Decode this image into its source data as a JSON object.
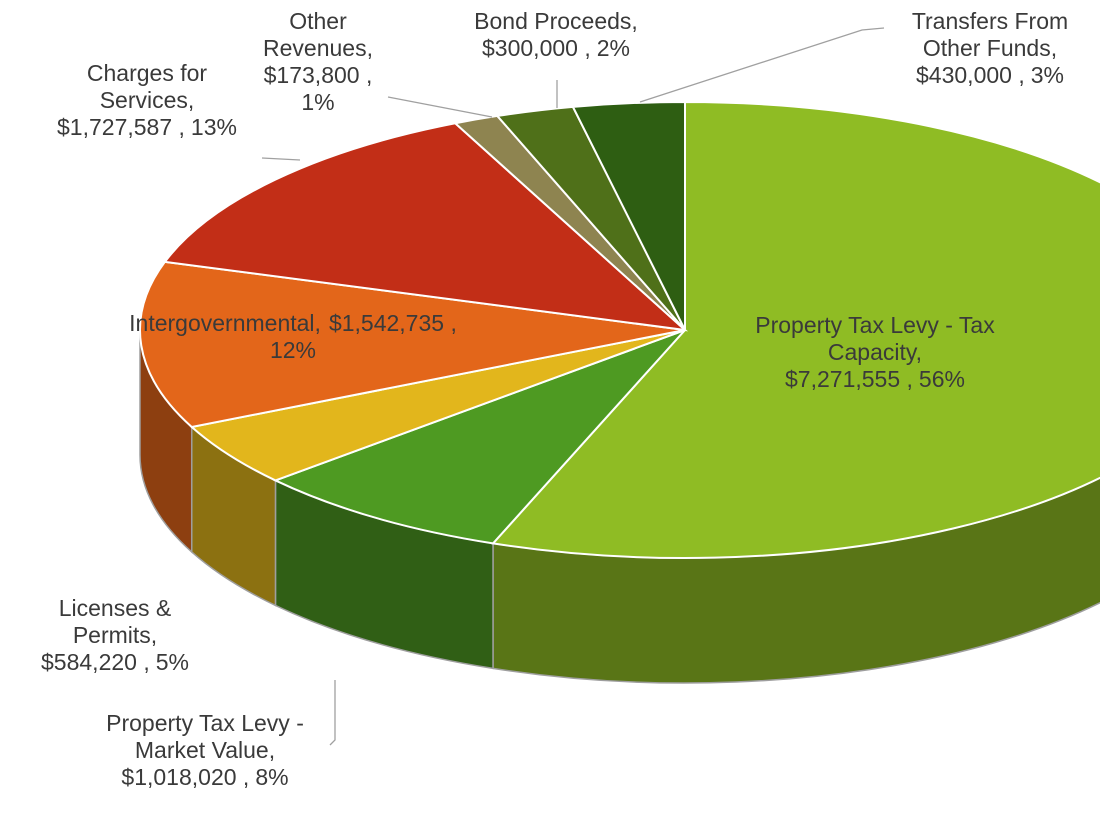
{
  "chart_data": {
    "type": "pie",
    "style": "3d",
    "categories": [
      "Property Tax Levy - Tax Capacity,",
      "Property Tax Levy - Market Value,",
      "Licenses & Permits,",
      "Intergovernmental,",
      "Charges for Services,",
      "Other Revenues,",
      "Bond Proceeds,",
      "Transfers From Other Funds,"
    ],
    "values": [
      7271555,
      1018020,
      584220,
      1542735,
      1727587,
      173800,
      300000,
      430000
    ],
    "value_labels": [
      "$7,271,555 ,",
      "$1,018,020 ,",
      "$584,220 ,",
      "$1,542,735 ,",
      "$1,727,587 ,",
      "$173,800 ,",
      "$300,000 ,",
      "$430,000 ,"
    ],
    "percent_labels": [
      "56%",
      "8%",
      "5%",
      "12%",
      "13%",
      "1%",
      "2%",
      "3%"
    ],
    "colors": [
      "#8fbc24",
      "#4e9a22",
      "#e2b61c",
      "#e3661a",
      "#c22e17",
      "#8e8450",
      "#4f7019",
      "#2e5e12"
    ]
  }
}
